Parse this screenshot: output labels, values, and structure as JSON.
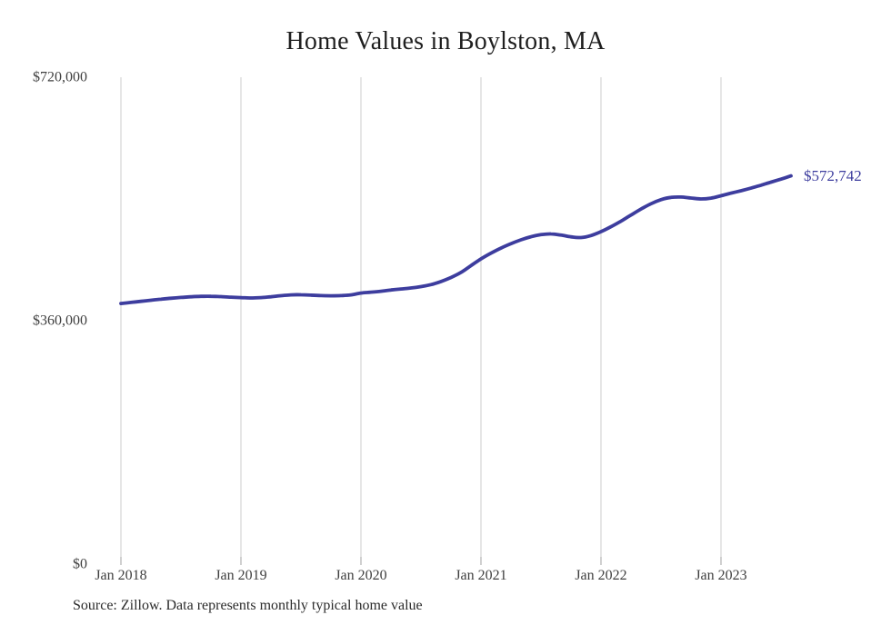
{
  "page": {
    "background": "#ffffff"
  },
  "chart_data": {
    "type": "line",
    "title": "Home Values in Boylston, MA",
    "xlabel": "",
    "ylabel": "",
    "ylim": [
      0,
      720000
    ],
    "grid": "vertical-only",
    "legend": "none",
    "x_tick_labels": [
      "Jan 2018",
      "Jan 2019",
      "Jan 2020",
      "Jan 2021",
      "Jan 2022",
      "Jan 2023"
    ],
    "y_ticks": [
      {
        "value": 720000,
        "label": "$720,000"
      },
      {
        "value": 360000,
        "label": "$360,000"
      },
      {
        "value": 0,
        "label": "$0"
      }
    ],
    "end_label": "$572,742",
    "months": [
      "2018-01",
      "2018-02",
      "2018-03",
      "2018-04",
      "2018-05",
      "2018-06",
      "2018-07",
      "2018-08",
      "2018-09",
      "2018-10",
      "2018-11",
      "2018-12",
      "2019-01",
      "2019-02",
      "2019-03",
      "2019-04",
      "2019-05",
      "2019-06",
      "2019-07",
      "2019-08",
      "2019-09",
      "2019-10",
      "2019-11",
      "2019-12",
      "2020-01",
      "2020-02",
      "2020-03",
      "2020-04",
      "2020-05",
      "2020-06",
      "2020-07",
      "2020-08",
      "2020-09",
      "2020-10",
      "2020-11",
      "2020-12",
      "2021-01",
      "2021-02",
      "2021-03",
      "2021-04",
      "2021-05",
      "2021-06",
      "2021-07",
      "2021-08",
      "2021-09",
      "2021-10",
      "2021-11",
      "2021-12",
      "2022-01",
      "2022-02",
      "2022-03",
      "2022-04",
      "2022-05",
      "2022-06",
      "2022-07",
      "2022-08",
      "2022-09",
      "2022-10",
      "2022-11",
      "2022-12",
      "2023-01",
      "2023-02",
      "2023-03",
      "2023-04",
      "2023-05",
      "2023-06",
      "2023-07",
      "2023-08"
    ],
    "series": [
      {
        "name": "Monthly typical home value",
        "color": "#3d3d9e",
        "values": [
          384000,
          385700,
          387300,
          388900,
          390400,
          391800,
          393000,
          394000,
          394600,
          394700,
          394200,
          393400,
          392800,
          392300,
          392800,
          394000,
          395600,
          396800,
          397000,
          396400,
          395700,
          395400,
          395700,
          396800,
          399500,
          400800,
          402200,
          404000,
          405500,
          407000,
          409000,
          412000,
          416500,
          422500,
          430000,
          440000,
          450000,
          458500,
          466000,
          472500,
          478200,
          482800,
          485800,
          487000,
          485200,
          482700,
          481600,
          484500,
          490300,
          497500,
          505800,
          514800,
          523700,
          531600,
          537600,
          541000,
          541500,
          540000,
          538700,
          539800,
          543400,
          547200,
          550800,
          554700,
          559000,
          563500,
          568000,
          572742
        ]
      }
    ]
  },
  "footer": {
    "source": "Source: Zillow. Data represents monthly typical home value"
  },
  "colors": {
    "line": "#3d3d9e",
    "grid": "#cccccc",
    "tick": "#a0a0a0",
    "axis_text": "#3f3f3f",
    "title_text": "#1f1f1f",
    "background": "#ffffff"
  }
}
